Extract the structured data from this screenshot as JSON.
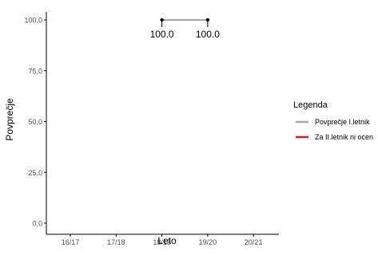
{
  "chart_data": {
    "type": "line",
    "categories": [
      "16/17",
      "17/18",
      "18/19",
      "19/20",
      "20/21"
    ],
    "series": [
      {
        "name": "Povprečje I.letnik",
        "color": "#a6a6a6",
        "values": [
          null,
          null,
          100.0,
          100.0,
          null
        ],
        "labels": [
          "",
          "",
          "100.0",
          "100.0",
          ""
        ]
      }
    ],
    "legend_only_series": [
      {
        "name": "Za II.letnik ni ocen",
        "color": "#e41a1c"
      }
    ],
    "xlabel": "Leto",
    "ylabel": "Povprečje",
    "ylim": [
      0,
      100
    ],
    "yticks": [
      0,
      25,
      50,
      75,
      100
    ],
    "ytick_labels": [
      "0,0",
      "25,0",
      "50,0",
      "75,0",
      "100,0"
    ],
    "legend_title": "Legenda",
    "legend_position": "right",
    "grid": false,
    "point_color": "#000000",
    "axis_color": "#000000"
  }
}
